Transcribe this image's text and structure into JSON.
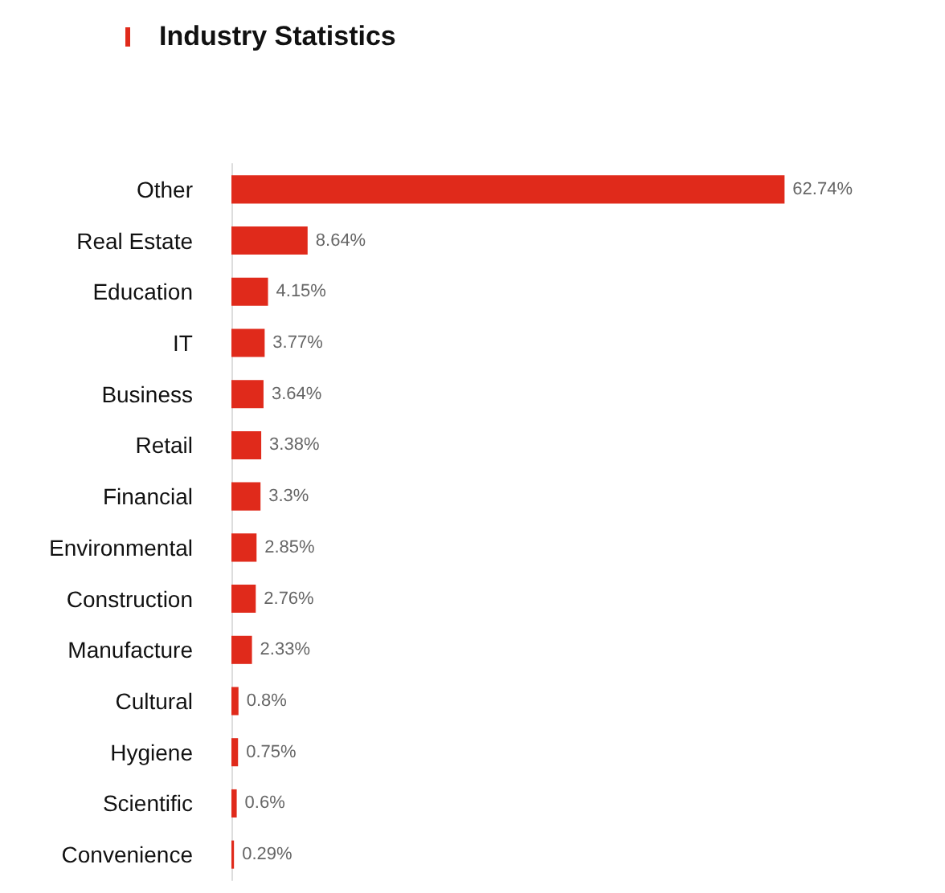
{
  "chart_data": {
    "type": "bar",
    "orientation": "horizontal",
    "title": "Industry Statistics",
    "categories": [
      "Other",
      "Real Estate",
      "Education",
      "IT",
      "Business",
      "Retail",
      "Financial",
      "Environmental",
      "Construction",
      "Manufacture",
      "Cultural",
      "Hygiene",
      "Scientific",
      "Convenience"
    ],
    "values": [
      62.74,
      8.64,
      4.15,
      3.77,
      3.64,
      3.38,
      3.3,
      2.85,
      2.76,
      2.33,
      0.8,
      0.75,
      0.6,
      0.29
    ],
    "value_labels": [
      "62.74%",
      "8.64%",
      "4.15%",
      "3.77%",
      "3.64%",
      "3.38%",
      "3.3%",
      "2.85%",
      "2.76%",
      "2.33%",
      "0.8%",
      "0.75%",
      "0.6%",
      "0.29%"
    ],
    "color": "#e02a1b"
  }
}
